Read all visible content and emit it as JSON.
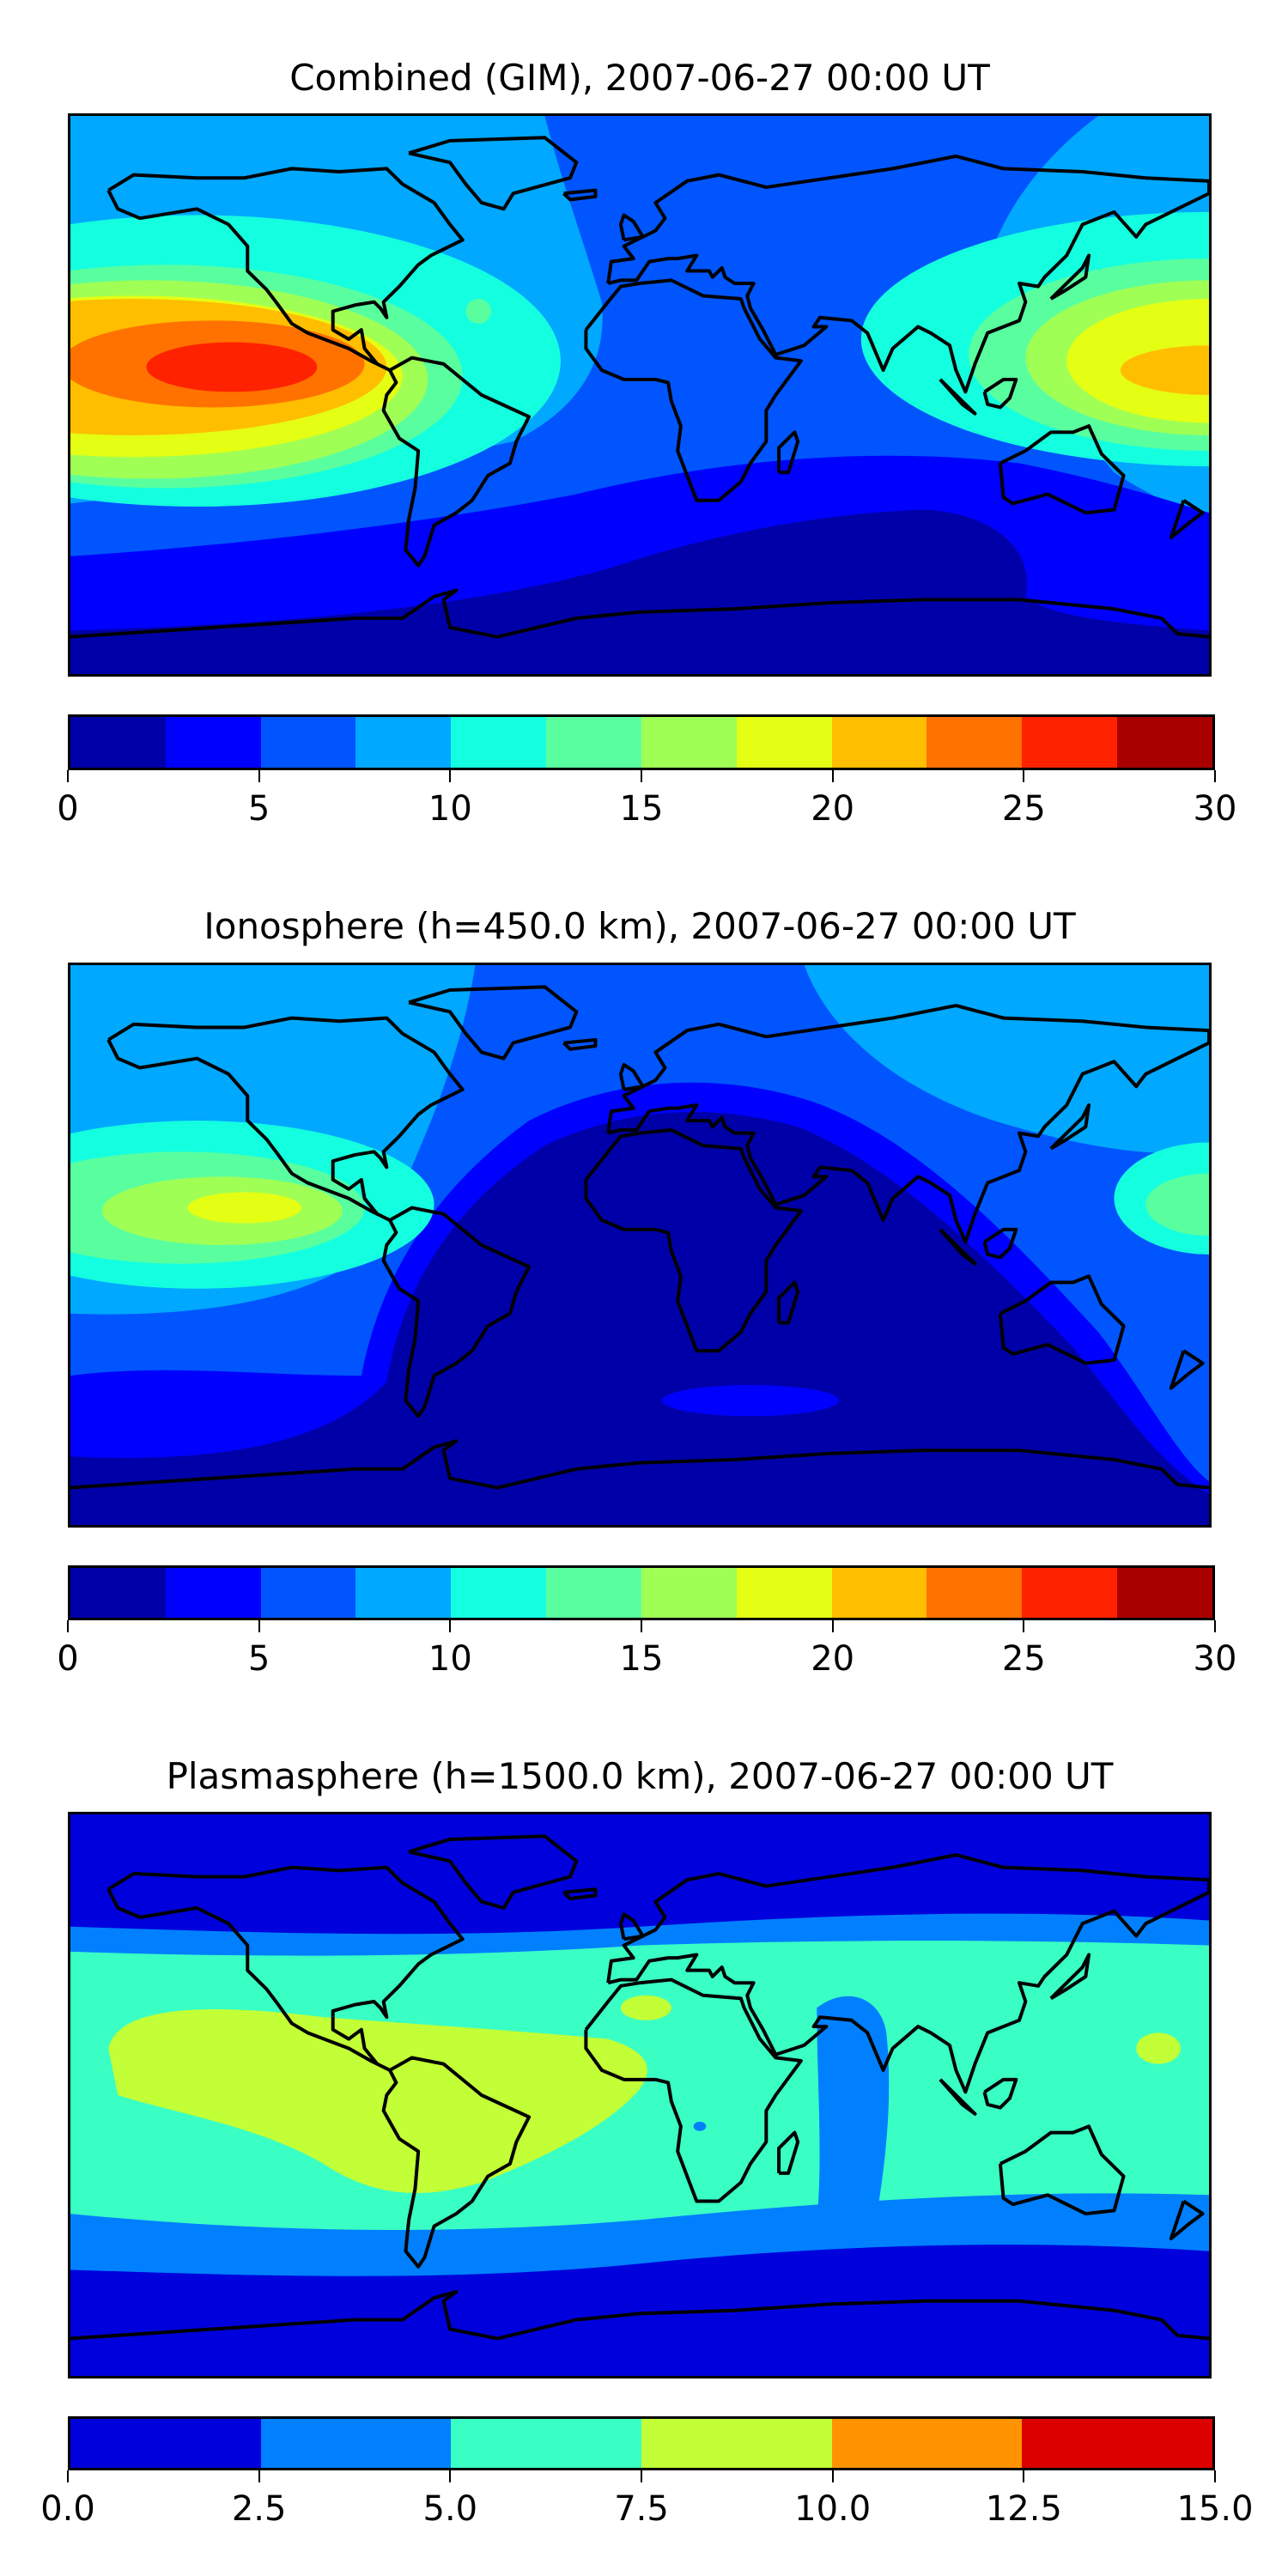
{
  "chart_data": [
    {
      "type": "heatmap",
      "title": "Combined (GIM), 2007-06-27 00:00 UT",
      "map": "world coastlines, filled contours",
      "colorbar": {
        "levels": [
          0,
          2.5,
          5,
          7.5,
          10,
          12.5,
          15,
          17.5,
          20,
          22.5,
          25,
          27.5,
          30
        ],
        "ticks": [
          0,
          5,
          10,
          15,
          20,
          25,
          30
        ],
        "tick_labels": [
          "0",
          "5",
          "10",
          "15",
          "20",
          "25",
          "30"
        ],
        "range": [
          0,
          30
        ],
        "colors": [
          "#0000a8",
          "#0000ff",
          "#0055ff",
          "#00a8ff",
          "#14ffdf",
          "#59ff9f",
          "#a0ff55",
          "#e4ff14",
          "#ffbe00",
          "#ff7200",
          "#ff2200",
          "#a80000"
        ]
      },
      "max_region": "eastern Pacific, ~25-27.5"
    },
    {
      "type": "heatmap",
      "title": "Ionosphere  (h=450.0 km), 2007-06-27 00:00 UT",
      "map": "world coastlines, filled contours",
      "colorbar": {
        "levels": [
          0,
          2.5,
          5,
          7.5,
          10,
          12.5,
          15,
          17.5,
          20,
          22.5,
          25,
          27.5,
          30
        ],
        "ticks": [
          0,
          5,
          10,
          15,
          20,
          25,
          30
        ],
        "tick_labels": [
          "0",
          "5",
          "10",
          "15",
          "20",
          "25",
          "30"
        ],
        "range": [
          0,
          30
        ],
        "colors": [
          "#0000a8",
          "#0000ff",
          "#0055ff",
          "#00a8ff",
          "#14ffdf",
          "#59ff9f",
          "#a0ff55",
          "#e4ff14",
          "#ffbe00",
          "#ff7200",
          "#ff2200",
          "#a80000"
        ]
      },
      "max_region": "eastern Pacific, ~17.5-20"
    },
    {
      "type": "heatmap",
      "title": "Plasmasphere (h=1500.0 km), 2007-06-27 00:00 UT",
      "map": "world coastlines, filled contours",
      "colorbar": {
        "levels": [
          0,
          2.5,
          5,
          7.5,
          10,
          12.5,
          15
        ],
        "ticks": [
          0,
          2.5,
          5,
          7.5,
          10,
          12.5,
          15
        ],
        "tick_labels": [
          "0.0",
          "2.5",
          "5.0",
          "7.5",
          "10.0",
          "12.5",
          "15.0"
        ],
        "range": [
          0,
          15
        ],
        "colors": [
          "#0000dc",
          "#0080ff",
          "#3affc4",
          "#c2ff36",
          "#ff9400",
          "#dc0000"
        ]
      },
      "max_region": "low latitudes, ~7.5-10"
    }
  ]
}
